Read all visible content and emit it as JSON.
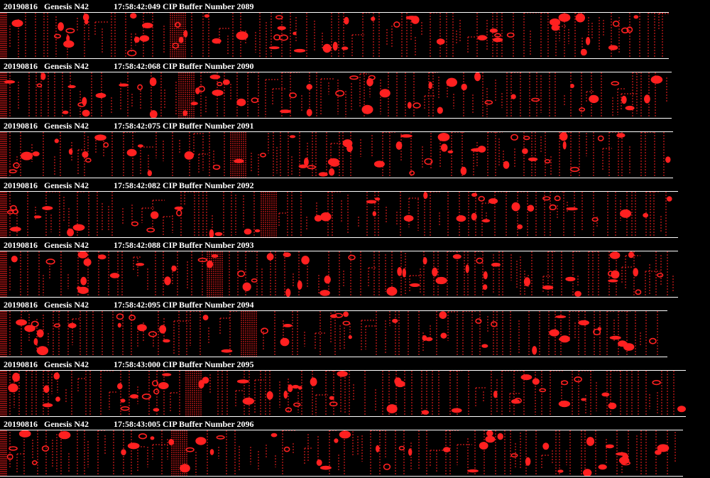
{
  "strips": [
    {
      "date": "20190816",
      "probe": "Genesis N42",
      "time": "17:58:42:049",
      "buffer": "CIP Buffer Number 2089"
    },
    {
      "date": "20190816",
      "probe": "Genesis N42",
      "time": "17:58:42:068",
      "buffer": "CIP Buffer Number 2090"
    },
    {
      "date": "20190816",
      "probe": "Genesis N42",
      "time": "17:58:42:075",
      "buffer": "CIP Buffer Number 2091"
    },
    {
      "date": "20190816",
      "probe": "Genesis N42",
      "time": "17:58:42:082",
      "buffer": "CIP Buffer Number 2092"
    },
    {
      "date": "20190816",
      "probe": "Genesis N42",
      "time": "17:58:42:088",
      "buffer": "CIP Buffer Number 2093"
    },
    {
      "date": "20190816",
      "probe": "Genesis N42",
      "time": "17:58:42:095",
      "buffer": "CIP Buffer Number 2094"
    },
    {
      "date": "20190816",
      "probe": "Genesis N42",
      "time": "17:58:43:000",
      "buffer": "CIP Buffer Number 2095"
    },
    {
      "date": "20190816",
      "probe": "Genesis N42",
      "time": "17:58:43:005",
      "buffer": "CIP Buffer Number 2096"
    }
  ],
  "colors": {
    "background": "#000000",
    "header_text": "#ffffff",
    "frame_line": "#ffffff",
    "particle": "#ff2020"
  }
}
